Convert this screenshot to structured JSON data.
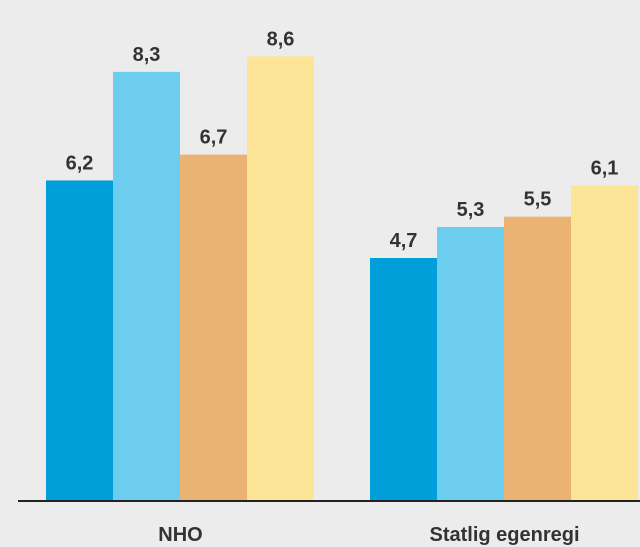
{
  "chart_data": {
    "type": "bar",
    "categories": [
      "NHO",
      "Statlig egenregi"
    ],
    "series": [
      {
        "values": [
          6.2,
          4.7
        ],
        "labels": [
          "6,2",
          "4,7"
        ],
        "color": "#009fd9"
      },
      {
        "values": [
          8.3,
          5.3
        ],
        "labels": [
          "8,3",
          "5,3"
        ],
        "color": "#6dcdee"
      },
      {
        "values": [
          6.7,
          5.5
        ],
        "labels": [
          "6,7",
          "5,5"
        ],
        "color": "#ebb373"
      },
      {
        "values": [
          8.6,
          6.1
        ],
        "labels": [
          "8,6",
          "6,1"
        ],
        "color": "#fce597"
      }
    ],
    "ylim": [
      0,
      10
    ],
    "grid": false,
    "legend": "none",
    "background": "#ececec",
    "axis_color": "#222222",
    "label_color": "#333333"
  }
}
